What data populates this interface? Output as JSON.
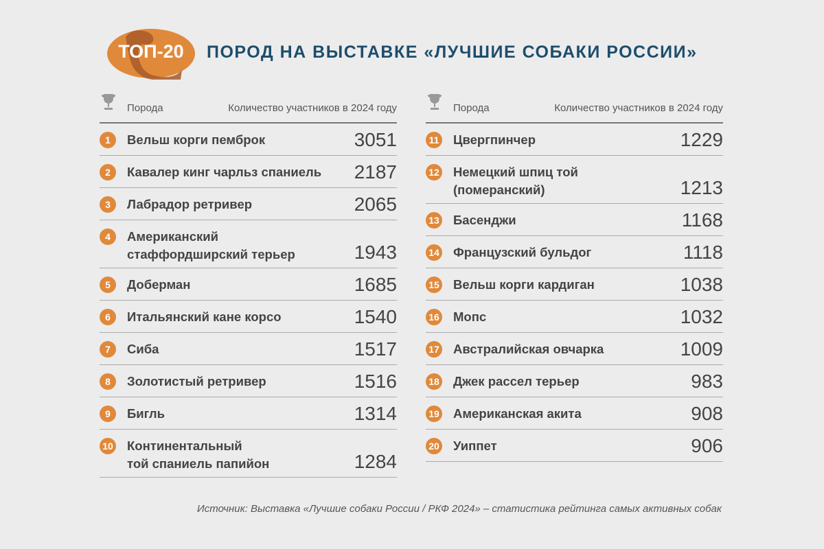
{
  "badge": "ТОП-20",
  "title": "ПОРОД НА ВЫСТАВКЕ «ЛУЧШИЕ СОБАКИ РОССИИ»",
  "columns": [
    {
      "header": {
        "breed": "Порода",
        "count": "Количество участников в 2024 году"
      },
      "rows": [
        {
          "rank": "1",
          "name": [
            "Вельш корги пемброк"
          ],
          "count": "3051"
        },
        {
          "rank": "2",
          "name": [
            "Кавалер кинг чарльз спаниель"
          ],
          "count": "2187"
        },
        {
          "rank": "3",
          "name": [
            "Лабрадор ретривер"
          ],
          "count": "2065"
        },
        {
          "rank": "4",
          "name": [
            "Американский",
            "стаффордширский терьер"
          ],
          "count": "1943"
        },
        {
          "rank": "5",
          "name": [
            "Доберман"
          ],
          "count": "1685"
        },
        {
          "rank": "6",
          "name": [
            "Итальянский кане корсо"
          ],
          "count": "1540"
        },
        {
          "rank": "7",
          "name": [
            "Сиба"
          ],
          "count": "1517"
        },
        {
          "rank": "8",
          "name": [
            "Золотистый ретривер"
          ],
          "count": "1516"
        },
        {
          "rank": "9",
          "name": [
            "Бигль"
          ],
          "count": "1314"
        },
        {
          "rank": "10",
          "name": [
            "Континентальный",
            "той спаниель папийон"
          ],
          "count": "1284"
        }
      ]
    },
    {
      "header": {
        "breed": "Порода",
        "count": "Количество участников в 2024 году"
      },
      "rows": [
        {
          "rank": "11",
          "name": [
            "Цвергпинчер"
          ],
          "count": "1229"
        },
        {
          "rank": "12",
          "name": [
            "Немецкий шпиц той",
            "(померанский)"
          ],
          "count": "1213"
        },
        {
          "rank": "13",
          "name": [
            "Басенджи"
          ],
          "count": "1168"
        },
        {
          "rank": "14",
          "name": [
            "Французский бульдог"
          ],
          "count": "1118"
        },
        {
          "rank": "15",
          "name": [
            "Вельш корги кардиган"
          ],
          "count": "1038"
        },
        {
          "rank": "16",
          "name": [
            "Мопс"
          ],
          "count": "1032"
        },
        {
          "rank": "17",
          "name": [
            "Австралийская овчарка"
          ],
          "count": "1009"
        },
        {
          "rank": "18",
          "name": [
            "Джек рассел терьер"
          ],
          "count": "983"
        },
        {
          "rank": "19",
          "name": [
            "Американская акита"
          ],
          "count": "908"
        },
        {
          "rank": "20",
          "name": [
            "Уиппет"
          ],
          "count": "906"
        }
      ]
    }
  ],
  "source": "Источник: Выставка «Лучшие собаки России / РКФ 2024» – статистика рейтинга самых активных собак"
}
